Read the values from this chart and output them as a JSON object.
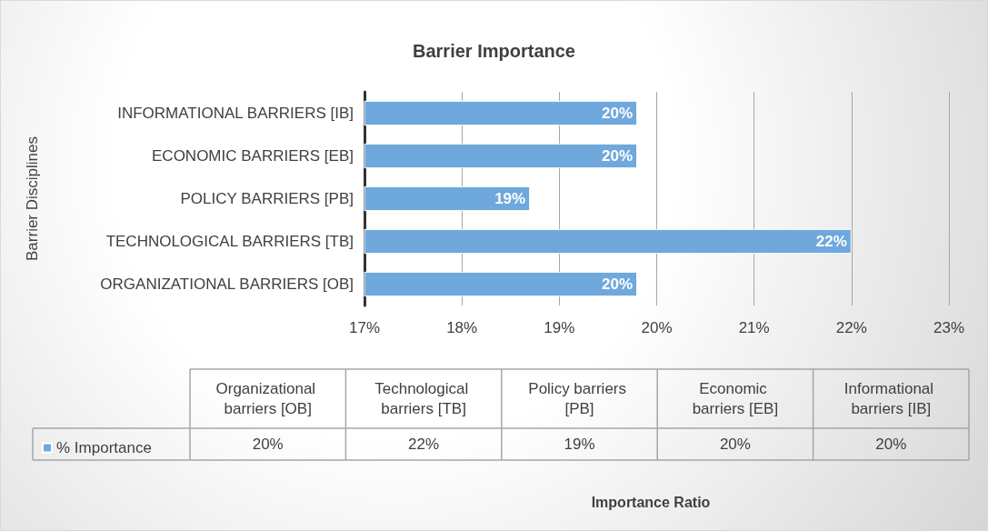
{
  "chart_data": {
    "type": "bar",
    "orientation": "horizontal",
    "title": "Barrier Importance",
    "ylabel": "Barrier Disciplines",
    "categories": [
      "INFORMATIONAL BARRIERS [IB]",
      "ECONOMIC BARRIERS [EB]",
      "POLICY BARRIERS [PB]",
      "TECHNOLOGICAL BARRIERS [TB]",
      "ORGANIZATIONAL BARRIERS [OB]"
    ],
    "series": [
      {
        "name": "% Importance",
        "color": "#6fa8dc",
        "values": [
          19.8,
          19.8,
          18.7,
          22.0,
          19.8
        ],
        "value_labels": [
          "20%",
          "20%",
          "19%",
          "22%",
          "20%"
        ]
      }
    ],
    "xlim": [
      17,
      23
    ],
    "xticks": [
      {
        "value": 17,
        "label": "17%"
      },
      {
        "value": 18,
        "label": "18%"
      },
      {
        "value": 19,
        "label": "19%"
      },
      {
        "value": 20,
        "label": "20%"
      },
      {
        "value": 21,
        "label": "21%"
      },
      {
        "value": 22,
        "label": "22%"
      },
      {
        "value": 23,
        "label": "23%"
      }
    ],
    "grid": "x",
    "legend": "bottom left",
    "annotations": [
      "Organizational barriers [OB]",
      "Technological barriers [TB]",
      "Policy barriers [PB]",
      "Economic barriers [EB]",
      "Informational barriers [IB]",
      "Importance Ratio"
    ]
  }
}
